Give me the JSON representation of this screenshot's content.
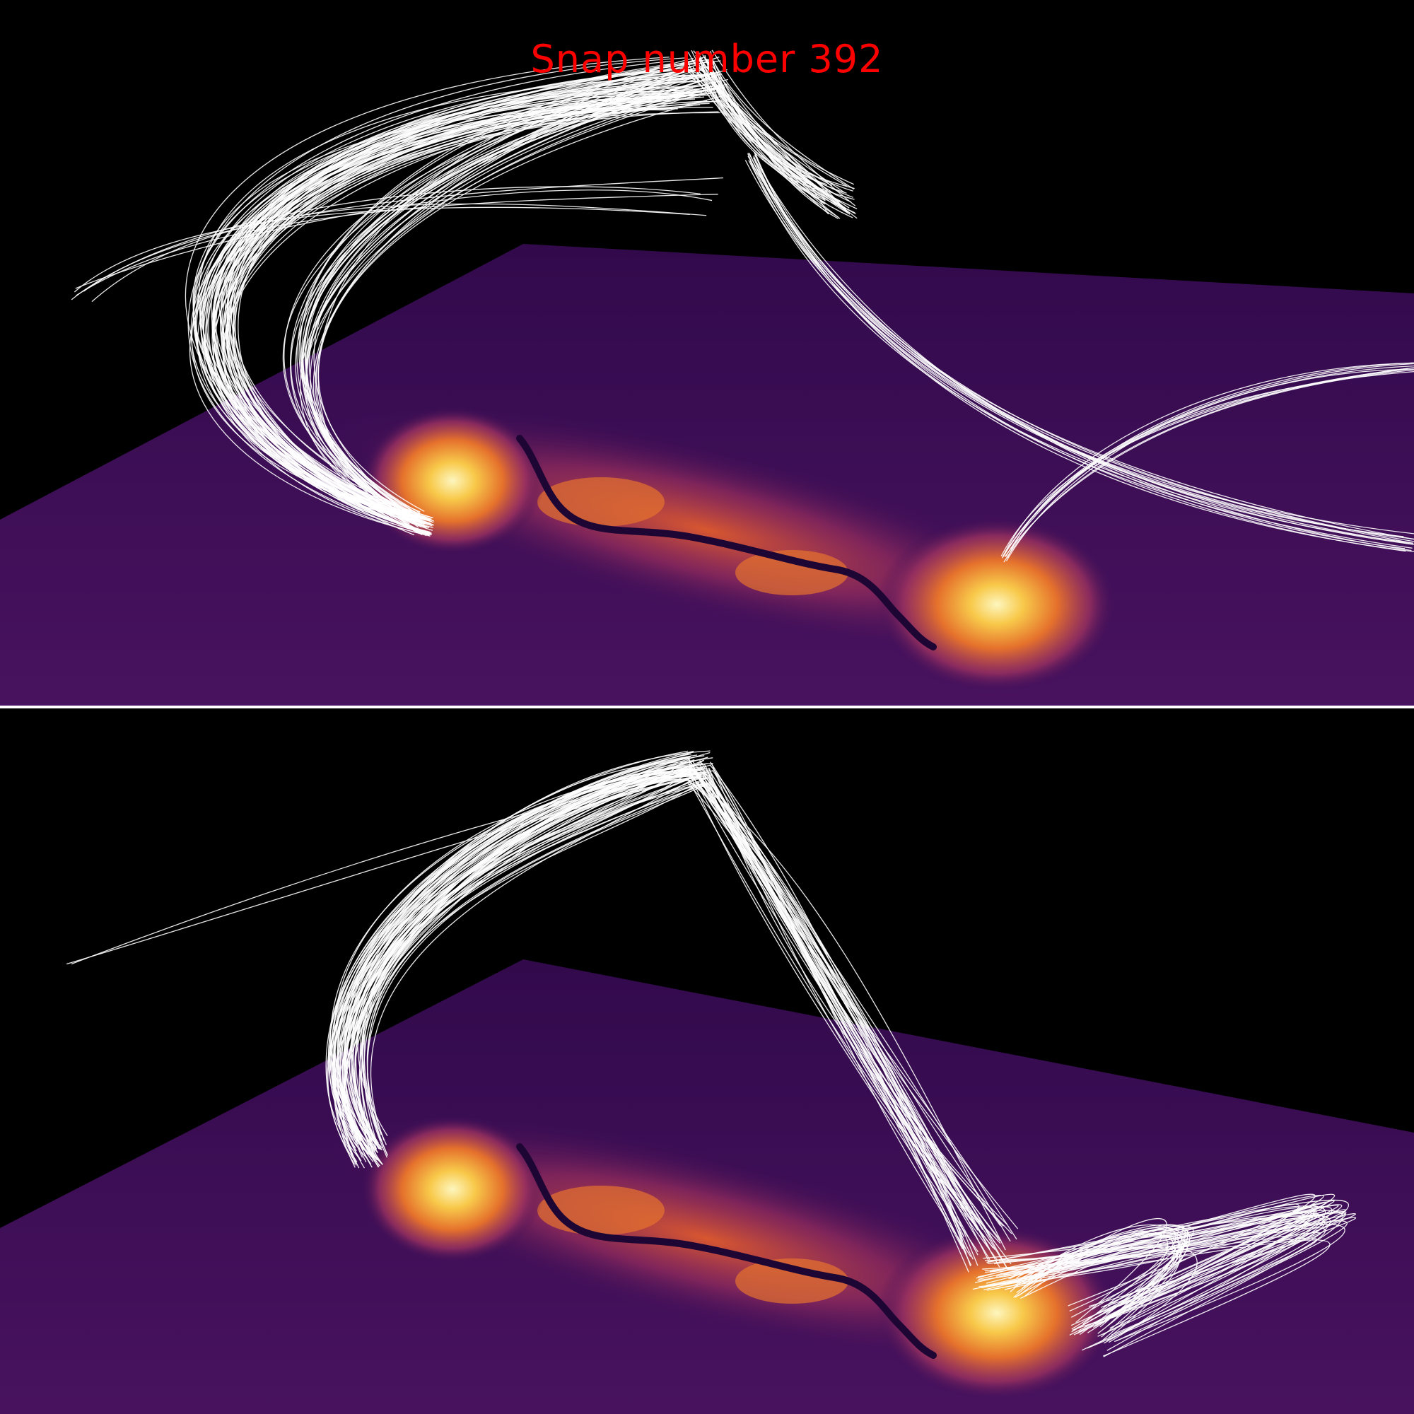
{
  "figure": {
    "title": "Snap number 392",
    "title_color": "#ff0000"
  },
  "colors": {
    "background": "#000000",
    "plane": "#3b0d55",
    "plane_edge": "#2e0a47",
    "hot_core": "#fcf4b5",
    "hot_mid": "#f6b33b",
    "hot_outer": "#e0602b",
    "hot_rim": "#8e2c5f",
    "dark_lane": "#1c0633",
    "field_lines": "#ffffff"
  },
  "panels": [
    {
      "name": "top-view"
    },
    {
      "name": "bottom-view"
    }
  ]
}
